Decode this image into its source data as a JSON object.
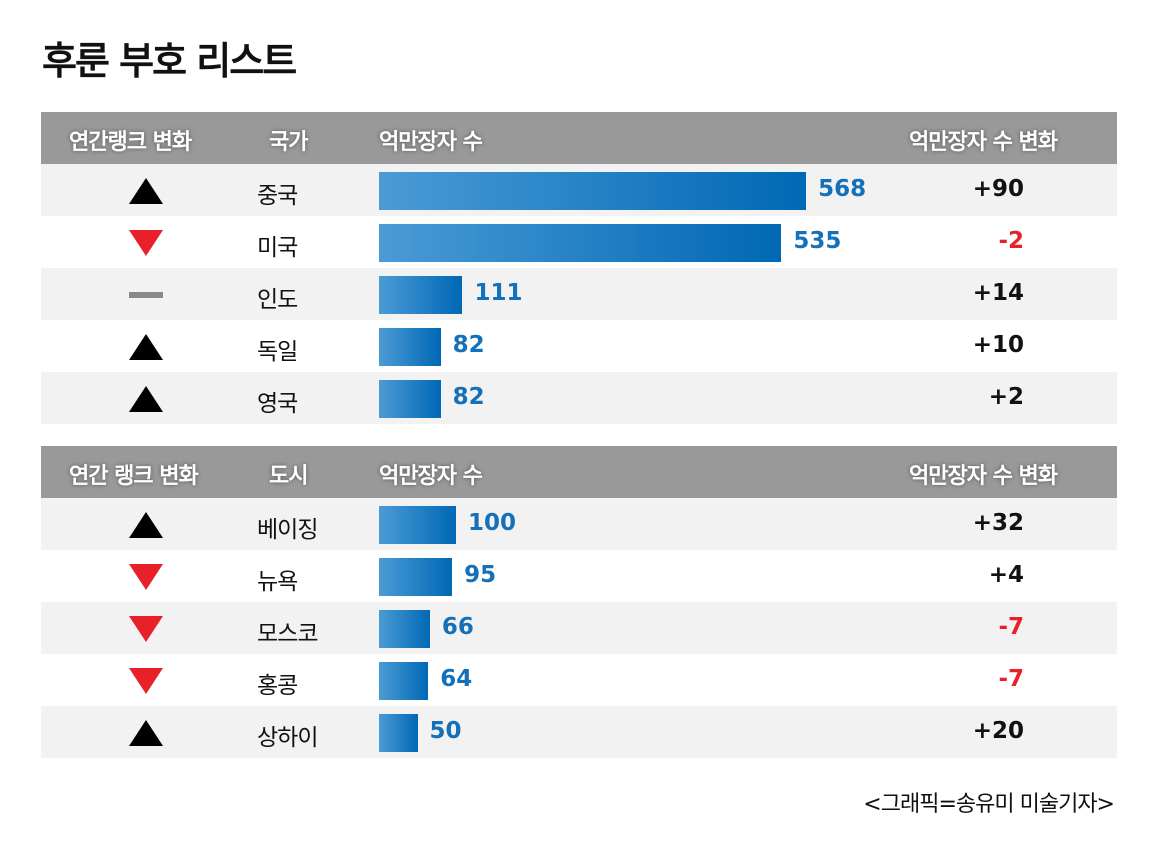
{
  "title": "후룬 부호 리스트",
  "colors": {
    "header": "#999999",
    "bar_start": "#4b9bd5",
    "bar_end": "#0068b5",
    "value": "#1470b8",
    "up": "#000000",
    "down": "#e8202a",
    "same": "#888888"
  },
  "chart_data": [
    {
      "type": "table",
      "headers": [
        "연간랭크 변화",
        "국가",
        "억만장자 수",
        "억만장자 수 변화"
      ],
      "rows": [
        {
          "rank": "up",
          "name": "중국",
          "value": 568,
          "change": "+90"
        },
        {
          "rank": "down",
          "name": "미국",
          "value": 535,
          "change": "-2"
        },
        {
          "rank": "same",
          "name": "인도",
          "value": 111,
          "change": "+14"
        },
        {
          "rank": "up",
          "name": "독일",
          "value": 82,
          "change": "+10"
        },
        {
          "rank": "up",
          "name": "영국",
          "value": 82,
          "change": "+2"
        }
      ]
    },
    {
      "type": "table",
      "headers": [
        "연간 랭크 변화",
        "도시",
        "억만장자 수",
        "억만장자 수 변화"
      ],
      "rows": [
        {
          "rank": "up",
          "name": "베이징",
          "value": 100,
          "change": "+32"
        },
        {
          "rank": "down",
          "name": "뉴욕",
          "value": 95,
          "change": "+4"
        },
        {
          "rank": "down",
          "name": "모스코",
          "value": 66,
          "change": "-7"
        },
        {
          "rank": "down",
          "name": "홍콩",
          "value": 64,
          "change": "-7"
        },
        {
          "rank": "up",
          "name": "상하이",
          "value": 50,
          "change": "+20"
        }
      ]
    }
  ],
  "credit": "<그래픽=송유미 미술기자>"
}
